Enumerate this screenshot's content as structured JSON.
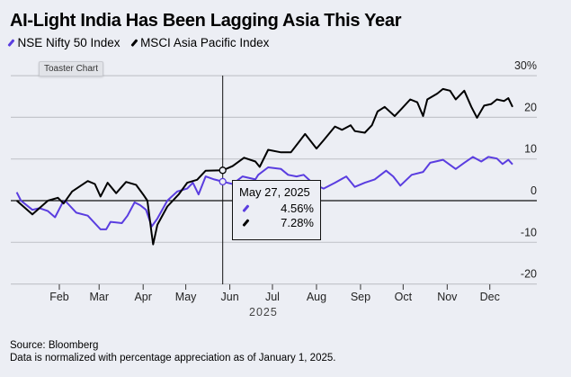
{
  "title": "AI-Light India Has Been Lagging Asia This Year",
  "toaster_label": "Toaster Chart",
  "footer": {
    "source": "Source: Bloomberg",
    "note": "Data is normalized with percentage appreciation as of January 1, 2025."
  },
  "tooltip": {
    "date": "May 27, 2025",
    "values": [
      "4.56%",
      "7.28%"
    ]
  },
  "chart_data": {
    "type": "line",
    "title": "AI-Light India Has Been Lagging Asia This Year",
    "xlabel": "2025",
    "ylabel": "",
    "ylim": [
      -20,
      30
    ],
    "xlim": [
      "2025-01-01",
      "2025-12-31"
    ],
    "grid": true,
    "legend": "top-left",
    "y_ticks": [
      "30%",
      "20",
      "10",
      "0",
      "-10",
      "-20"
    ],
    "y_tick_values": [
      30,
      20,
      10,
      0,
      -10,
      -20
    ],
    "x_ticks": [
      "Feb",
      "Mar",
      "Apr",
      "May",
      "Jun",
      "Jul",
      "Aug",
      "Sep",
      "Oct",
      "Nov",
      "Dec"
    ],
    "x_tick_dates": [
      "2025-02-01",
      "2025-03-01",
      "2025-04-01",
      "2025-05-01",
      "2025-06-01",
      "2025-07-01",
      "2025-08-01",
      "2025-09-01",
      "2025-10-01",
      "2025-11-01",
      "2025-12-01"
    ],
    "highlight_date": "2025-05-27",
    "series": [
      {
        "name": "NSE Nifty 50 Index",
        "color": "#5a3de0",
        "points": [
          [
            "2025-01-02",
            2.0
          ],
          [
            "2025-01-05",
            0
          ],
          [
            "2025-01-13",
            -2.2
          ],
          [
            "2025-01-18",
            -1.8
          ],
          [
            "2025-01-24",
            -2.5
          ],
          [
            "2025-01-29",
            -4.0
          ],
          [
            "2025-02-03",
            -0.7
          ],
          [
            "2025-02-05",
            0
          ],
          [
            "2025-02-13",
            -2.9
          ],
          [
            "2025-02-21",
            -3.6
          ],
          [
            "2025-03-02",
            -6.9
          ],
          [
            "2025-03-06",
            -6.9
          ],
          [
            "2025-03-09",
            -5.1
          ],
          [
            "2025-03-17",
            -5.4
          ],
          [
            "2025-03-21",
            -3.6
          ],
          [
            "2025-03-26",
            -0.4
          ],
          [
            "2025-03-30",
            -1.1
          ],
          [
            "2025-04-03",
            -2.2
          ],
          [
            "2025-04-07",
            -6.2
          ],
          [
            "2025-04-11",
            -4.3
          ],
          [
            "2025-04-18",
            0
          ],
          [
            "2025-04-25",
            2.2
          ],
          [
            "2025-05-02",
            2.9
          ],
          [
            "2025-05-06",
            4.3
          ],
          [
            "2025-05-10",
            1.5
          ],
          [
            "2025-05-15",
            5.8
          ],
          [
            "2025-05-21",
            5.1
          ],
          [
            "2025-05-27",
            4.56
          ],
          [
            "2025-06-03",
            4.0
          ],
          [
            "2025-06-10",
            5.8
          ],
          [
            "2025-06-19",
            5.1
          ],
          [
            "2025-06-21",
            6.2
          ],
          [
            "2025-06-28",
            8.0
          ],
          [
            "2025-07-07",
            7.6
          ],
          [
            "2025-07-12",
            6.2
          ],
          [
            "2025-07-18",
            5.8
          ],
          [
            "2025-07-23",
            6.2
          ],
          [
            "2025-07-30",
            4.0
          ],
          [
            "2025-08-06",
            2.9
          ],
          [
            "2025-08-14",
            4.3
          ],
          [
            "2025-08-22",
            5.8
          ],
          [
            "2025-08-28",
            3.3
          ],
          [
            "2025-09-04",
            4.3
          ],
          [
            "2025-09-11",
            5.1
          ],
          [
            "2025-09-19",
            7.2
          ],
          [
            "2025-09-24",
            5.8
          ],
          [
            "2025-09-29",
            3.6
          ],
          [
            "2025-10-07",
            6.2
          ],
          [
            "2025-10-15",
            6.9
          ],
          [
            "2025-10-20",
            9.1
          ],
          [
            "2025-10-29",
            9.8
          ],
          [
            "2025-11-07",
            7.6
          ],
          [
            "2025-11-13",
            9.1
          ],
          [
            "2025-11-19",
            10.5
          ],
          [
            "2025-11-25",
            9.4
          ],
          [
            "2025-11-30",
            10.5
          ],
          [
            "2025-12-06",
            10.1
          ],
          [
            "2025-12-10",
            8.8
          ],
          [
            "2025-12-14",
            9.8
          ],
          [
            "2025-12-17",
            8.7
          ]
        ]
      },
      {
        "name": "MSCI Asia Pacific Index",
        "color": "#000000",
        "points": [
          [
            "2025-01-02",
            0
          ],
          [
            "2025-01-13",
            -3.3
          ],
          [
            "2025-01-24",
            0
          ],
          [
            "2025-01-31",
            0.7
          ],
          [
            "2025-02-04",
            -0.7
          ],
          [
            "2025-02-10",
            2.2
          ],
          [
            "2025-02-21",
            4.7
          ],
          [
            "2025-02-26",
            4.0
          ],
          [
            "2025-03-02",
            1.0
          ],
          [
            "2025-03-07",
            4.3
          ],
          [
            "2025-03-13",
            1.8
          ],
          [
            "2025-03-20",
            4.5
          ],
          [
            "2025-03-27",
            3.8
          ],
          [
            "2025-04-01",
            1.5
          ],
          [
            "2025-04-04",
            0
          ],
          [
            "2025-04-07",
            -8.0
          ],
          [
            "2025-04-08",
            -10.5
          ],
          [
            "2025-04-11",
            -5.8
          ],
          [
            "2025-04-18",
            -1.4
          ],
          [
            "2025-04-26",
            1.5
          ],
          [
            "2025-05-02",
            4.3
          ],
          [
            "2025-05-09",
            5.0
          ],
          [
            "2025-05-15",
            7.2
          ],
          [
            "2025-05-27",
            7.28
          ],
          [
            "2025-06-03",
            8.3
          ],
          [
            "2025-06-11",
            10.3
          ],
          [
            "2025-06-19",
            9.4
          ],
          [
            "2025-06-22",
            8.1
          ],
          [
            "2025-06-28",
            12.2
          ],
          [
            "2025-07-07",
            11.6
          ],
          [
            "2025-07-14",
            11.6
          ],
          [
            "2025-07-19",
            13.8
          ],
          [
            "2025-07-24",
            16.0
          ],
          [
            "2025-08-01",
            12.5
          ],
          [
            "2025-08-06",
            14.5
          ],
          [
            "2025-08-14",
            17.8
          ],
          [
            "2025-08-19",
            17.0
          ],
          [
            "2025-08-25",
            18.1
          ],
          [
            "2025-08-28",
            16.7
          ],
          [
            "2025-09-04",
            16.3
          ],
          [
            "2025-09-09",
            18.1
          ],
          [
            "2025-09-13",
            21.4
          ],
          [
            "2025-09-18",
            22.5
          ],
          [
            "2025-09-25",
            20.3
          ],
          [
            "2025-09-30",
            22.1
          ],
          [
            "2025-10-06",
            24.3
          ],
          [
            "2025-10-11",
            23.6
          ],
          [
            "2025-10-15",
            20.3
          ],
          [
            "2025-10-18",
            24.3
          ],
          [
            "2025-10-25",
            25.7
          ],
          [
            "2025-10-29",
            26.8
          ],
          [
            "2025-11-03",
            26.4
          ],
          [
            "2025-11-07",
            24.3
          ],
          [
            "2025-11-13",
            26.4
          ],
          [
            "2025-11-18",
            22.5
          ],
          [
            "2025-11-22",
            19.9
          ],
          [
            "2025-11-27",
            22.8
          ],
          [
            "2025-12-02",
            23.2
          ],
          [
            "2025-12-06",
            24.3
          ],
          [
            "2025-12-11",
            23.9
          ],
          [
            "2025-12-14",
            24.6
          ],
          [
            "2025-12-17",
            22.5
          ]
        ]
      }
    ]
  }
}
